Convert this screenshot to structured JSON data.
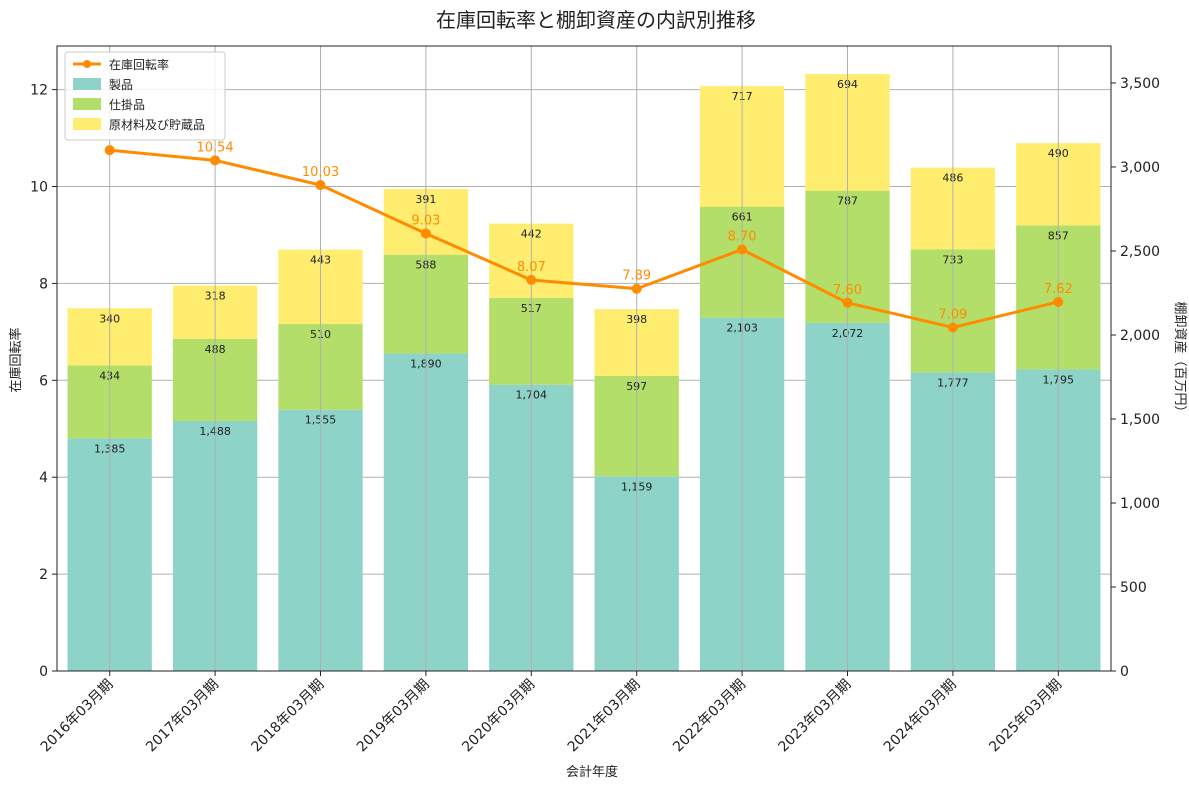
{
  "chart_data": {
    "type": "bar",
    "title": "在庫回転率と棚卸資産の内訳別推移",
    "xlabel": "会計年度",
    "ylabel_left": "在庫回転率",
    "ylabel_right": "棚卸資産（百万円）",
    "categories": [
      "2016年03月期",
      "2017年03月期",
      "2018年03月期",
      "2019年03月期",
      "2020年03月期",
      "2021年03月期",
      "2022年03月期",
      "2023年03月期",
      "2024年03月期",
      "2025年03月期"
    ],
    "series": [
      {
        "name": "製品",
        "kind": "bar",
        "axis": "right",
        "color": "#8dd3c7",
        "values": [
          1385,
          1488,
          1555,
          1890,
          1704,
          1159,
          2103,
          2072,
          1777,
          1795
        ]
      },
      {
        "name": "仕掛品",
        "kind": "bar",
        "axis": "right",
        "color": "#b3de69",
        "values": [
          434,
          488,
          510,
          588,
          517,
          597,
          661,
          787,
          733,
          857
        ]
      },
      {
        "name": "原材料及び貯蔵品",
        "kind": "bar",
        "axis": "right",
        "color": "#ffed6f",
        "values": [
          340,
          318,
          443,
          391,
          442,
          398,
          717,
          694,
          486,
          490
        ]
      },
      {
        "name": "在庫回転率",
        "kind": "line",
        "axis": "left",
        "color": "#ff8c00",
        "values": [
          10.75,
          10.54,
          10.03,
          9.03,
          8.07,
          7.89,
          8.7,
          7.6,
          7.09,
          7.62
        ]
      }
    ],
    "line_labels": [
      "",
      "10.54",
      "10.03",
      "9.03",
      "8.07",
      "7.89",
      "8.70",
      "7.60",
      "7.09",
      "7.62"
    ],
    "ylim_left": [
      0,
      12.9
    ],
    "ylim_right": [
      0,
      3720
    ],
    "yticks_left": [
      "0",
      "2",
      "4",
      "6",
      "8",
      "10",
      "12"
    ],
    "yticks_left_values": [
      0,
      2,
      4,
      6,
      8,
      10,
      12
    ],
    "yticks_right": [
      "0",
      "500",
      "1,000",
      "1,500",
      "2,000",
      "2,500",
      "3,000",
      "3,500"
    ],
    "yticks_right_values": [
      0,
      500,
      1000,
      1500,
      2000,
      2500,
      3000,
      3500
    ],
    "legend_position": "top-left",
    "grid": true
  }
}
